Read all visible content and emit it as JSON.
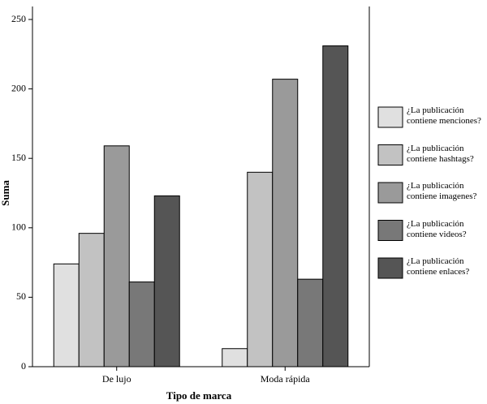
{
  "chart_data": {
    "type": "bar",
    "x_label": "Tipo de marca",
    "y_label": "Suma",
    "categories": [
      "De lujo",
      "Moda rápida"
    ],
    "series": [
      {
        "name": "¿La publicación contiene menciones?",
        "color": "#e0e0e0",
        "values": [
          74,
          13
        ]
      },
      {
        "name": "¿La publicación contiene hashtags?",
        "color": "#c2c2c2",
        "values": [
          96,
          140
        ]
      },
      {
        "name": "¿La publicación contiene imagenes?",
        "color": "#9a9a9a",
        "values": [
          159,
          207
        ]
      },
      {
        "name": "¿La publicación contiene videos?",
        "color": "#787878",
        "values": [
          61,
          63
        ]
      },
      {
        "name": "¿La publicación contiene enlaces?",
        "color": "#555555",
        "values": [
          123,
          231
        ]
      }
    ],
    "ylim": [
      0,
      250
    ],
    "yticks": [
      0,
      50,
      100,
      150,
      200,
      250
    ]
  }
}
